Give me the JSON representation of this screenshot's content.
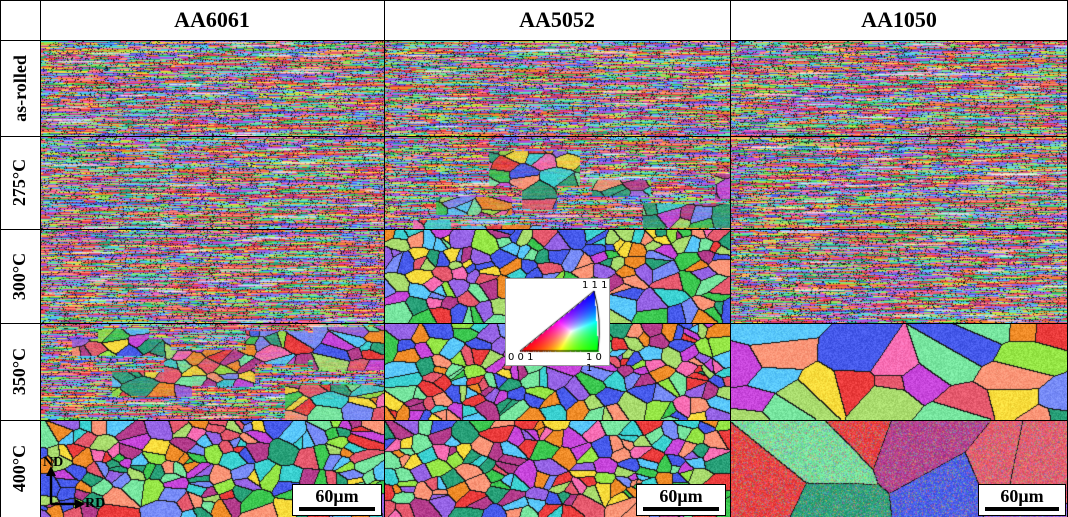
{
  "figure": {
    "columns": [
      "AA6061",
      "AA5052",
      "AA1050"
    ],
    "rows": [
      "as-rolled",
      "275°C",
      "300°C",
      "350°C",
      "400°C"
    ],
    "scale_bar": "60μm",
    "axes": {
      "vertical": "ND",
      "horizontal": "RD"
    },
    "legend": {
      "top": "1 1 1",
      "bottom_left": "0 0 1",
      "bottom_right": "1 0 1"
    },
    "cell_textures": [
      [
        "fine-elongated",
        "fine-elongated",
        "fine-elongated"
      ],
      [
        "fine-elongated",
        "partial-recrystallized",
        "fine-elongated"
      ],
      [
        "fine-elongated",
        "recrystallized-equiaxed",
        "fine-elongated"
      ],
      [
        "partial-recrystallized",
        "recrystallized-equiaxed",
        "coarse-grains"
      ],
      [
        "recrystallized-equiaxed",
        "recrystallized-equiaxed",
        "very-coarse-grains"
      ]
    ],
    "colors": {
      "background": "#ffffff",
      "grid_lines": "#000000",
      "grain_boundaries": "#000000"
    }
  }
}
